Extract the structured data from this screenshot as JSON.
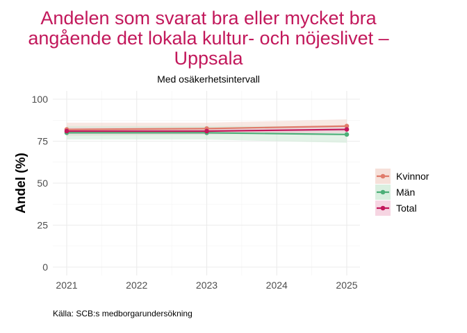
{
  "chart_data": {
    "type": "line",
    "title_lines": [
      "Andelen som svarat bra eller mycket bra",
      "angående det lokala kultur- och nöjeslivet –",
      "Uppsala"
    ],
    "subtitle": "Med osäkerhetsintervall",
    "xlabel": "",
    "ylabel": "Andel (%)",
    "x_ticks": [
      2021,
      2022,
      2023,
      2024,
      2025
    ],
    "y_ticks": [
      0,
      25,
      50,
      75,
      100
    ],
    "xlim": [
      2021,
      2025
    ],
    "ylim": [
      0,
      100
    ],
    "grid": true,
    "legend_position": "right",
    "caption": "Källa: SCB:s medborgarundersökning",
    "series": [
      {
        "name": "Kvinnor",
        "color": "#e07b6a",
        "band_color": "#f3d6cc",
        "x": [
          2021,
          2023,
          2025
        ],
        "values": [
          82,
          82.5,
          84
        ],
        "lower": [
          78,
          79,
          80
        ],
        "upper": [
          86,
          86,
          88
        ]
      },
      {
        "name": "Män",
        "color": "#4caf78",
        "band_color": "#cde9d6",
        "x": [
          2021,
          2023,
          2025
        ],
        "values": [
          80,
          80,
          79
        ],
        "lower": [
          76,
          76,
          74
        ],
        "upper": [
          84,
          84,
          84
        ]
      },
      {
        "name": "Total",
        "color": "#c2185b",
        "band_color": "#f3c7d8",
        "x": [
          2021,
          2023,
          2025
        ],
        "values": [
          81,
          81,
          82
        ],
        "lower": [
          79,
          79,
          80
        ],
        "upper": [
          83,
          83,
          84
        ]
      }
    ]
  }
}
